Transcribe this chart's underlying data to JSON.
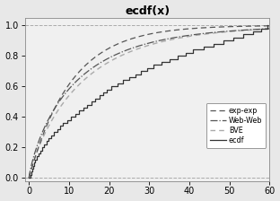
{
  "title": "ecdf(x)",
  "xlim": [
    -1,
    60
  ],
  "ylim": [
    -0.02,
    1.05
  ],
  "xticks": [
    0,
    10,
    20,
    30,
    40,
    50,
    60
  ],
  "ytick_vals": [
    0.0,
    0.2,
    0.4,
    0.6,
    0.8,
    1.0
  ],
  "ytick_labels": [
    "0.0",
    "0.2",
    "0.4",
    "0.6",
    "0.8",
    "1.0"
  ],
  "hline_y": [
    0.0,
    1.0
  ],
  "legend_labels": [
    "exp-exp",
    "Web-Web",
    "BVE",
    "ecdf"
  ],
  "bg_color": "#e8e8e8",
  "plot_bg": "#f2f2f2",
  "title_fontsize": 9,
  "tick_fontsize": 7,
  "sample_data": [
    0.3,
    0.5,
    0.8,
    1.0,
    1.3,
    1.6,
    2.0,
    2.4,
    2.8,
    3.2,
    3.8,
    4.3,
    4.9,
    5.5,
    6.2,
    7.0,
    7.8,
    8.5,
    9.5,
    10.5,
    11.5,
    12.5,
    13.5,
    14.5,
    15.5,
    16.5,
    17.5,
    18.5,
    19.5,
    20.5,
    22.0,
    23.5,
    25.0,
    26.5,
    28.0,
    29.5,
    31.0,
    33.0,
    35.0,
    37.0,
    39.0,
    41.0,
    43.5,
    46.0,
    48.5,
    51.0,
    53.5,
    56.0,
    58.0,
    59.5
  ],
  "exp_exp_lambda": 0.095,
  "web_web_lambda": 0.085,
  "web_web_k": 0.82,
  "bve_lambda": 0.075,
  "bve_k": 0.88
}
